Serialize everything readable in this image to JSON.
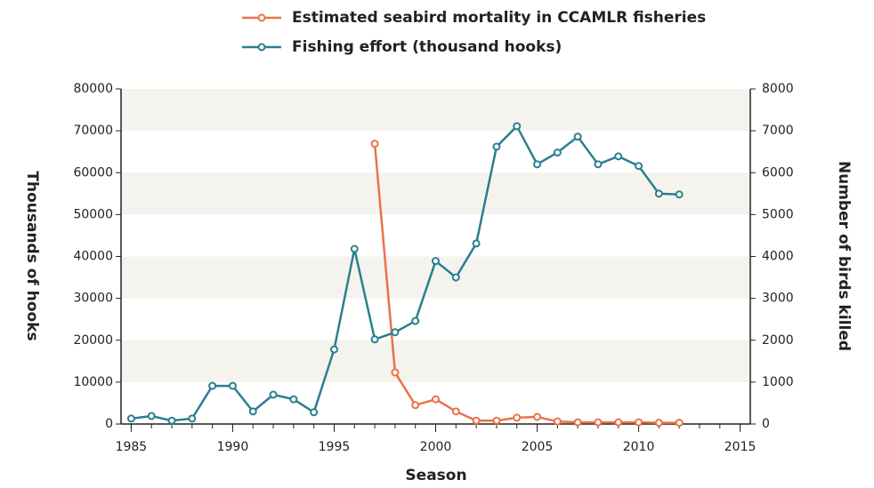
{
  "chart_data": {
    "type": "line",
    "x": [
      1985,
      1986,
      1987,
      1988,
      1989,
      1990,
      1991,
      1992,
      1993,
      1994,
      1995,
      1996,
      1997,
      1998,
      1999,
      2000,
      2001,
      2002,
      2003,
      2004,
      2005,
      2006,
      2007,
      2008,
      2009,
      2010,
      2011,
      2012
    ],
    "series": [
      {
        "name": "Estimated seabird mortality in CCAMLR fisheries",
        "color": "#e8734a",
        "axis": "y2",
        "values": [
          null,
          null,
          null,
          null,
          null,
          null,
          null,
          null,
          null,
          null,
          null,
          null,
          6690,
          1230,
          450,
          590,
          300,
          80,
          80,
          150,
          170,
          60,
          40,
          40,
          40,
          40,
          30,
          30
        ]
      },
      {
        "name": "Fishing effort (thousand hooks)",
        "color": "#2a7f8f",
        "values": [
          1300,
          1900,
          800,
          1300,
          9100,
          9100,
          3000,
          7000,
          5900,
          2800,
          17800,
          41800,
          20200,
          21900,
          24600,
          38900,
          35000,
          43100,
          66200,
          71100,
          62000,
          64800,
          68600,
          62000,
          63900,
          61600,
          55000,
          54800
        ]
      }
    ],
    "x_label": "Season",
    "y_label": "Thousands of hooks",
    "y2_label": "Number of birds killed",
    "xlim": [
      1984.5,
      2015.5
    ],
    "xticks": [
      1985,
      1990,
      1995,
      2000,
      2005,
      2010,
      2015
    ],
    "ylim": [
      0,
      80000
    ],
    "yticks": [
      0,
      10000,
      20000,
      30000,
      40000,
      50000,
      60000,
      70000,
      80000
    ],
    "y2lim": [
      0,
      8000
    ],
    "y2ticks": [
      0,
      1000,
      2000,
      3000,
      4000,
      5000,
      6000,
      7000,
      8000
    ],
    "legend": "top"
  }
}
